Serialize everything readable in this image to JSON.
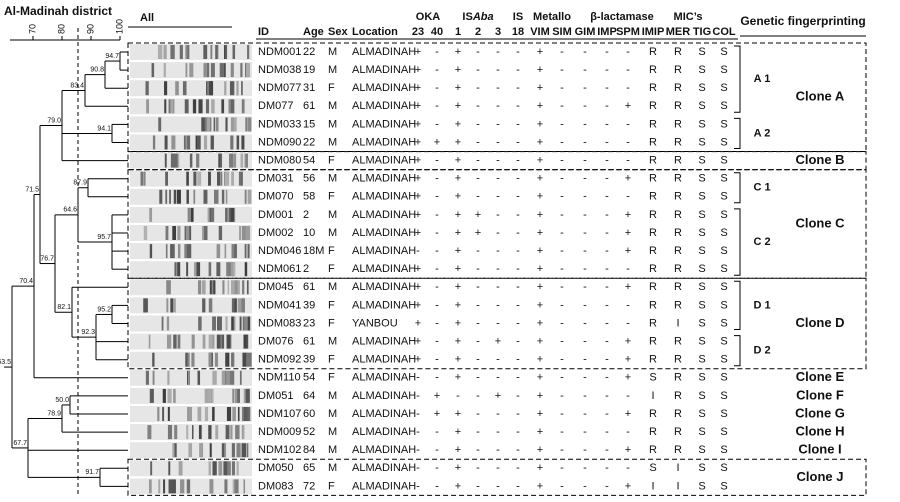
{
  "title": "Al-Madinah district",
  "scale_ticks": [
    "70",
    "80",
    "90",
    "100"
  ],
  "dendrogram_nodes": [
    "94.7",
    "90.8",
    "83.4",
    "94.1",
    "79.0",
    "87.9",
    "76.7",
    "64.6",
    "95.7",
    "82.1",
    "71.5",
    "95.2",
    "92.3",
    "70.4",
    "50.0",
    "78.9",
    "67.7",
    "63.5",
    "91.7"
  ],
  "gel_label": "All",
  "headers": {
    "id": "ID",
    "age": "Age",
    "sex": "Sex",
    "location": "Location",
    "oka": "OKA",
    "oka_cols": [
      "23",
      "40"
    ],
    "isaba_prefix": "IS",
    "isaba_italic": "Aba",
    "isaba_cols": [
      "1",
      "2",
      "3"
    ],
    "is": "IS",
    "is_cols": [
      "18"
    ],
    "mbl_metallo": "Metallo",
    "mbl_beta": "β-lactamase",
    "mbl_cols": [
      "VIM",
      "SIM",
      "GIM",
      "IMP",
      "SPM"
    ],
    "mic": "MIC’s",
    "mic_cols": [
      "IMIP",
      "MER",
      "TIG",
      "COL"
    ],
    "fingerprint": "Genetic fingerprinting"
  },
  "groups": [
    {
      "clone": "Clone A",
      "boxed": true,
      "subgroups": [
        {
          "label": "A 1",
          "rows": [
            [
              "NDM001",
              "22",
              "M",
              "ALMADINAH",
              "+",
              "-",
              "+",
              "-",
              "-",
              "-",
              "+",
              "-",
              "-",
              "-",
              "-",
              "R",
              "R",
              "S",
              "S"
            ],
            [
              "NDM038",
              "19",
              "M",
              "ALMADINAH",
              "+",
              "-",
              "+",
              "-",
              "-",
              "-",
              "+",
              "-",
              "-",
              "-",
              "-",
              "R",
              "R",
              "S",
              "S"
            ],
            [
              "NDM077",
              "31",
              "F",
              "ALMADINAH",
              "+",
              "-",
              "+",
              "-",
              "-",
              "-",
              "+",
              "-",
              "-",
              "-",
              "-",
              "R",
              "R",
              "S",
              "S"
            ],
            [
              "DM077",
              "61",
              "M",
              "ALMADINAH",
              "+",
              "-",
              "+",
              "-",
              "-",
              "-",
              "+",
              "-",
              "-",
              "-",
              "+",
              "R",
              "R",
              "S",
              "S"
            ]
          ]
        },
        {
          "label": "A 2",
          "rows": [
            [
              "NDM033",
              "15",
              "M",
              "ALMADINAH",
              "+",
              "-",
              "+",
              "-",
              "-",
              "-",
              "+",
              "-",
              "-",
              "-",
              "-",
              "R",
              "R",
              "S",
              "S"
            ],
            [
              "NDM090",
              "22",
              "M",
              "ALMADINAH",
              "+",
              "+",
              "+",
              "-",
              "-",
              "-",
              "+",
              "-",
              "-",
              "-",
              "-",
              "R",
              "R",
              "S",
              "S"
            ]
          ]
        }
      ]
    },
    {
      "clone": "Clone B",
      "boxed": true,
      "rows": [
        [
          "NDM080",
          "54",
          "F",
          "ALMADINAH",
          "+",
          "-",
          "+",
          "-",
          "-",
          "-",
          "+",
          "-",
          "-",
          "-",
          "-",
          "R",
          "R",
          "S",
          "S"
        ]
      ]
    },
    {
      "clone": "Clone C",
      "boxed": true,
      "subgroups": [
        {
          "label": "C 1",
          "rows": [
            [
              "DM031",
              "56",
              "M",
              "ALMADINAH",
              "+",
              "-",
              "+",
              "-",
              "-",
              "-",
              "+",
              "-",
              "-",
              "-",
              "+",
              "R",
              "R",
              "S",
              "S"
            ],
            [
              "DM070",
              "58",
              "F",
              "ALMADINAH",
              "+",
              "-",
              "+",
              "-",
              "-",
              "-",
              "+",
              "-",
              "-",
              "-",
              "-",
              "R",
              "R",
              "S",
              "S"
            ]
          ]
        },
        {
          "label": "C 2",
          "rows": [
            [
              "DM001",
              "2",
              "M",
              "ALMADINAH",
              "+",
              "-",
              "+",
              "+",
              "-",
              "-",
              "+",
              "-",
              "-",
              "-",
              "+",
              "R",
              "R",
              "S",
              "S"
            ],
            [
              "DM002",
              "10",
              "M",
              "ALMADINAH",
              "+",
              "-",
              "+",
              "+",
              "-",
              "-",
              "+",
              "-",
              "-",
              "-",
              "+",
              "R",
              "R",
              "S",
              "S"
            ],
            [
              "NDM046",
              "18M",
              "F",
              "ALMADINAH",
              "-",
              "-",
              "+",
              "-",
              "-",
              "-",
              "+",
              "-",
              "-",
              "-",
              "+",
              "R",
              "R",
              "S",
              "S"
            ],
            [
              "NDM061",
              "2",
              "F",
              "ALMADINAH",
              "+",
              "-",
              "+",
              "-",
              "-",
              "-",
              "+",
              "-",
              "-",
              "-",
              "-",
              "R",
              "R",
              "S",
              "S"
            ]
          ]
        }
      ]
    },
    {
      "clone": "Clone D",
      "boxed": true,
      "subgroups": [
        {
          "label": "D 1",
          "rows": [
            [
              "DM045",
              "61",
              "M",
              "ALMADINAH",
              "+",
              "-",
              "+",
              "-",
              "-",
              "-",
              "+",
              "-",
              "-",
              "-",
              "+",
              "R",
              "R",
              "S",
              "S"
            ],
            [
              "NDM041",
              "39",
              "F",
              "ALMADINAH",
              "+",
              "-",
              "+",
              "-",
              "-",
              "-",
              "+",
              "-",
              "-",
              "-",
              "-",
              "R",
              "R",
              "S",
              "S"
            ],
            [
              "NDM083",
              "23",
              "F",
              "YANBOU",
              "+",
              "-",
              "+",
              "-",
              "-",
              "-",
              "+",
              "-",
              "-",
              "-",
              "-",
              "R",
              "I",
              "S",
              "S"
            ]
          ]
        },
        {
          "label": "D 2",
          "rows": [
            [
              "DM076",
              "61",
              "M",
              "ALMADINAH",
              "+",
              "-",
              "+",
              "-",
              "+",
              "-",
              "+",
              "-",
              "-",
              "-",
              "+",
              "R",
              "R",
              "S",
              "S"
            ],
            [
              "NDM092",
              "39",
              "F",
              "ALMADINAH",
              "+",
              "-",
              "+",
              "-",
              "-",
              "-",
              "+",
              "-",
              "-",
              "-",
              "+",
              "R",
              "R",
              "S",
              "S"
            ]
          ]
        }
      ]
    },
    {
      "clone": "Clone E",
      "boxed": false,
      "rows": [
        [
          "NDM110",
          "54",
          "F",
          "ALMADINAH",
          "-",
          "-",
          "+",
          "-",
          "-",
          "-",
          "+",
          "-",
          "-",
          "-",
          "+",
          "S",
          "R",
          "S",
          "S"
        ]
      ]
    },
    {
      "clone": "Clone F",
      "boxed": false,
      "rows": [
        [
          "DM051",
          "64",
          "M",
          "ALMADINAH",
          "-",
          "+",
          "-",
          "-",
          "+",
          "-",
          "+",
          "-",
          "-",
          "-",
          "-",
          "I",
          "R",
          "S",
          "S"
        ]
      ]
    },
    {
      "clone": "Clone G",
      "boxed": false,
      "rows": [
        [
          "NDM107",
          "60",
          "M",
          "ALMADINAH",
          "-",
          "+",
          "+",
          "-",
          "-",
          "-",
          "+",
          "-",
          "-",
          "-",
          "+",
          "R",
          "R",
          "S",
          "S"
        ]
      ]
    },
    {
      "clone": "Clone H",
      "boxed": false,
      "rows": [
        [
          "NDM009",
          "52",
          "M",
          "ALMADINAH",
          "-",
          "-",
          "+",
          "-",
          "-",
          "-",
          "+",
          "-",
          "-",
          "-",
          "-",
          "R",
          "R",
          "S",
          "S"
        ]
      ]
    },
    {
      "clone": "Clone I",
      "boxed": false,
      "rows": [
        [
          "NDM102",
          "84",
          "M",
          "ALMADINAH",
          "-",
          "-",
          "+",
          "-",
          "-",
          "-",
          "+",
          "-",
          "-",
          "-",
          "+",
          "R",
          "R",
          "S",
          "S"
        ]
      ]
    },
    {
      "clone": "Clone J",
      "boxed": true,
      "rows": [
        [
          "DM050",
          "65",
          "M",
          "ALMADINAH",
          "-",
          "-",
          "+",
          "-",
          "-",
          "-",
          "+",
          "-",
          "-",
          "-",
          "-",
          "S",
          "I",
          "S",
          "S"
        ],
        [
          "DM083",
          "72",
          "F",
          "ALMADINAH",
          "-",
          "-",
          "+",
          "-",
          "-",
          "-",
          "+",
          "-",
          "-",
          "-",
          "+",
          "I",
          "I",
          "S",
          "S"
        ]
      ]
    }
  ]
}
